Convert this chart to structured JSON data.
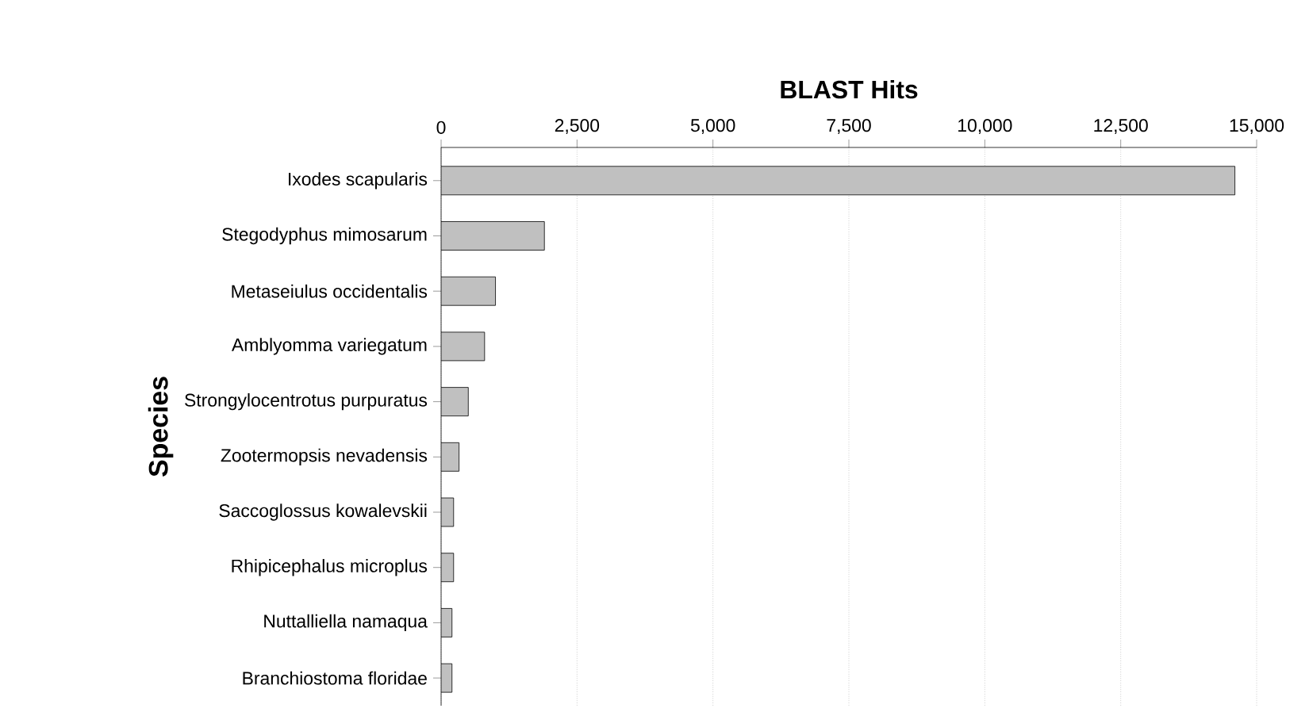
{
  "chart_data": {
    "type": "bar",
    "orientation": "horizontal",
    "xlabel": "BLAST Hits",
    "ylabel": "Species",
    "categories": [
      "Ixodes scapularis",
      "Stegodyphus mimosarum",
      "Metaseiulus occidentalis",
      "Amblyomma variegatum",
      "Strongylocentrotus purpuratus",
      "Zootermopsis nevadensis",
      "Saccoglossus kowalevskii",
      "Rhipicephalus microplus",
      "Nuttalliella namaqua",
      "Branchiostoma floridae"
    ],
    "values": [
      14600,
      1900,
      1000,
      800,
      500,
      330,
      230,
      230,
      200,
      200
    ],
    "color": "#c0c0c0",
    "xlim": [
      0,
      15000
    ],
    "xticks": [
      {
        "value": 0,
        "label": "0"
      },
      {
        "value": 2500,
        "label": "2,500"
      },
      {
        "value": 5000,
        "label": "5,000"
      },
      {
        "value": 7500,
        "label": "7,500"
      },
      {
        "value": 10000,
        "label": "10,000"
      },
      {
        "value": 12500,
        "label": "12,500"
      },
      {
        "value": 15000,
        "label": "15,000"
      }
    ],
    "grid": "x"
  }
}
